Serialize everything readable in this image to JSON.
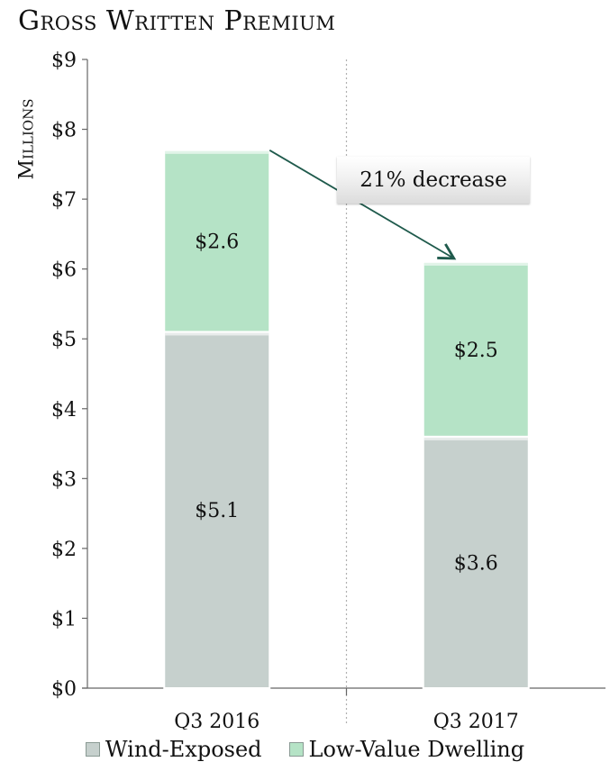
{
  "title": "Gross Written Premium",
  "colors": {
    "wind_exposed": "#c6d0cd",
    "low_value_dwelling": "#b5e3c6",
    "arrow": "#1f5a4c"
  },
  "annotation": {
    "text": "21% decrease"
  },
  "chart_data": {
    "type": "bar",
    "stacked": true,
    "title": "Gross Written Premium",
    "xlabel": "",
    "ylabel": "Millions",
    "ylim": [
      0,
      9
    ],
    "yticks": [
      "$0",
      "$1",
      "$2",
      "$3",
      "$4",
      "$5",
      "$6",
      "$7",
      "$8",
      "$9"
    ],
    "categories": [
      "Q3 2016",
      "Q3 2017"
    ],
    "series": [
      {
        "name": "Wind-Exposed",
        "values": [
          5.1,
          3.6
        ],
        "labels": [
          "$5.1",
          "$3.6"
        ]
      },
      {
        "name": "Low-Value Dwelling",
        "values": [
          2.6,
          2.5
        ],
        "labels": [
          "$2.6",
          "$2.5"
        ]
      }
    ],
    "legend_position": "bottom",
    "grid": false
  }
}
